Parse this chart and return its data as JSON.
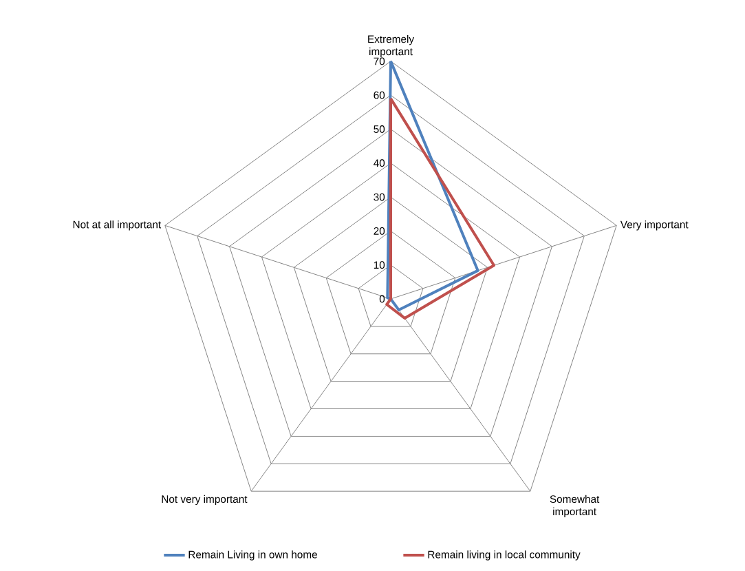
{
  "chart_data": {
    "type": "radar",
    "categories": [
      "Extremely important",
      "Very important",
      "Somewhat important",
      "Not very important",
      "Not at all important"
    ],
    "series": [
      {
        "name": "Remain Living in own home",
        "color": "#4f81bd",
        "values": [
          70,
          27,
          4,
          0,
          1
        ]
      },
      {
        "name": "Remain living in local community",
        "color": "#c0504d",
        "values": [
          59,
          32,
          7,
          2,
          0
        ]
      }
    ],
    "ylim": [
      0,
      70
    ],
    "yticks": [
      0,
      10,
      20,
      30,
      40,
      50,
      60,
      70
    ],
    "grid": true,
    "legend": "bottom",
    "marker": "none",
    "line_style": "solid"
  }
}
